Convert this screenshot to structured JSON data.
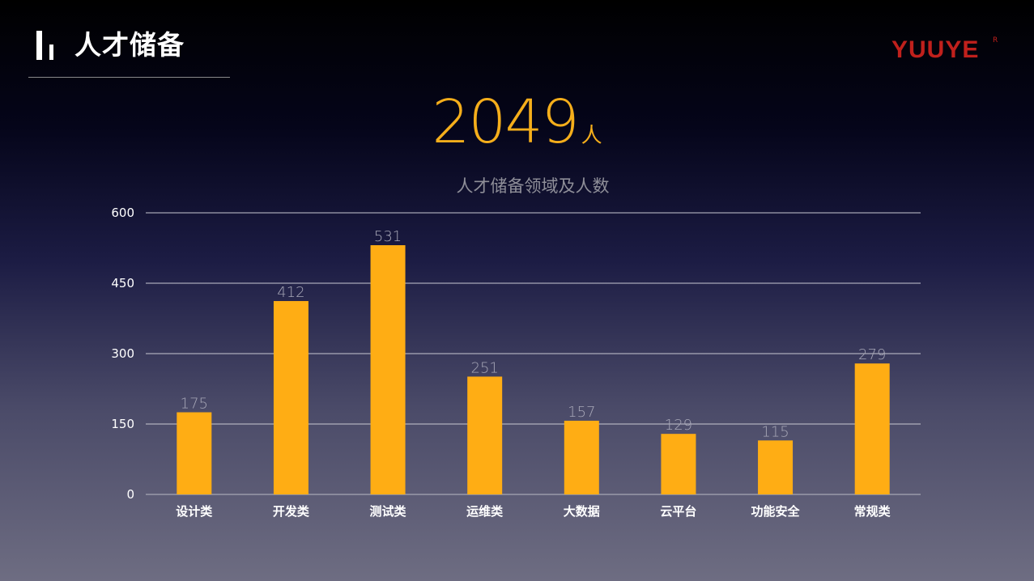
{
  "header": {
    "title": "人才储备",
    "logo": "YUUYE",
    "logo_mark": "R"
  },
  "headline": {
    "value": "2049",
    "unit": "人"
  },
  "colors": {
    "bar": "#ffad14",
    "accent_text": "#f5ae1b",
    "logo": "#c0201c"
  },
  "chart_data": {
    "type": "bar",
    "title": "人才储备领域及人数",
    "categories": [
      "设计类",
      "开发类",
      "测试类",
      "运维类",
      "大数据",
      "云平台",
      "功能安全",
      "常规类"
    ],
    "values": [
      175,
      412,
      531,
      251,
      157,
      129,
      115,
      279
    ],
    "ylim": [
      0,
      600
    ],
    "yticks": [
      0,
      150,
      300,
      450,
      600
    ],
    "grid": true,
    "legend": "none",
    "data_labels": true
  }
}
